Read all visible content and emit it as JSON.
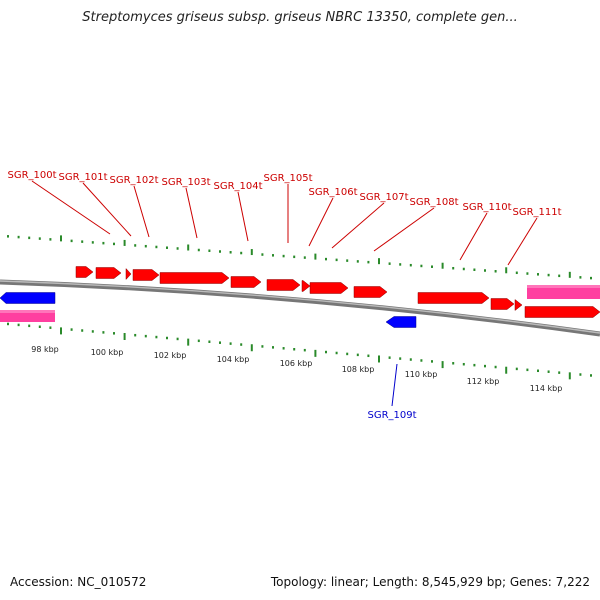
{
  "title": "Streptomyces griseus subsp. griseus NBRC 13350, complete gen...",
  "footer": {
    "accession": "Accession: NC_010572",
    "stats": "Topology: linear; Length: 8,545,929 bp; Genes: 7,222"
  },
  "colors": {
    "forward_gene": "#ff0000",
    "reverse_gene": "#0000ff",
    "rrna": "#ff3fa0",
    "label_top": "#cc0000",
    "label_bottom": "#0000cc",
    "ticks": "#2a8a2a",
    "backbone": "#777777"
  },
  "scale": {
    "unit": "kbp",
    "labels": [
      "98 kbp",
      "100 kbp",
      "102 kbp",
      "104 kbp",
      "106 kbp",
      "108 kbp",
      "110 kbp",
      "112 kbp",
      "114 kbp"
    ]
  },
  "top_labels": [
    "SGR_100t",
    "SGR_101t",
    "SGR_102t",
    "SGR_103t",
    "SGR_104t",
    "SGR_105t",
    "SGR_106t",
    "SGR_107t",
    "SGR_108t",
    "SGR_110t",
    "SGR_111t"
  ],
  "bottom_labels": [
    "SGR_109t"
  ]
}
